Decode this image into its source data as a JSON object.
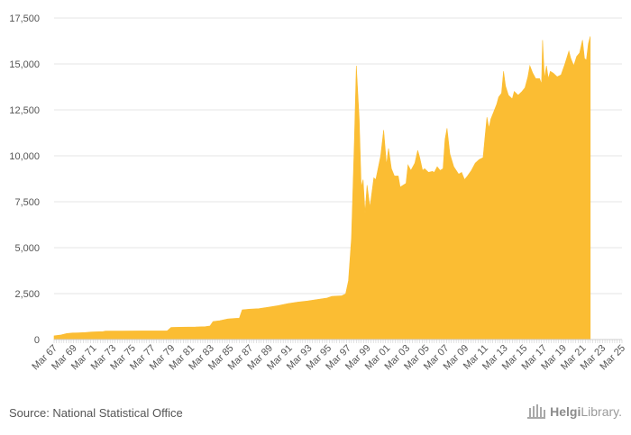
{
  "chart_data": {
    "type": "area",
    "title": "",
    "xlabel": "",
    "ylabel": "",
    "ylim": [
      0,
      17500
    ],
    "yticks": [
      0,
      2500,
      5000,
      7500,
      10000,
      12500,
      15000,
      17500
    ],
    "ytick_labels": [
      "0",
      "2,500",
      "5,000",
      "7,500",
      "10,000",
      "12,500",
      "15,000",
      "17,500"
    ],
    "xlim": [
      1967.0,
      2025.25
    ],
    "xtick_labels": [
      "Mar 67",
      "Mar 69",
      "Mar 71",
      "Mar 73",
      "Mar 75",
      "Mar 77",
      "Mar 79",
      "Mar 81",
      "Mar 83",
      "Mar 85",
      "Mar 87",
      "Mar 89",
      "Mar 91",
      "Mar 93",
      "Mar 95",
      "Mar 97",
      "Mar 99",
      "Mar 01",
      "Mar 03",
      "Mar 05",
      "Mar 07",
      "Mar 09",
      "Mar 11",
      "Mar 13",
      "Mar 15",
      "Mar 17",
      "Mar 19",
      "Mar 21",
      "Mar 23",
      "Mar 25"
    ],
    "grid": true,
    "series": [
      {
        "name": "Value",
        "color": "#fbbd33",
        "points": [
          [
            1967.0,
            200
          ],
          [
            1967.7,
            250
          ],
          [
            1968.3,
            330
          ],
          [
            1968.9,
            360
          ],
          [
            1969.5,
            370
          ],
          [
            1970.2,
            380
          ],
          [
            1970.9,
            410
          ],
          [
            1972.0,
            430
          ],
          [
            1972.3,
            460
          ],
          [
            1974.0,
            465
          ],
          [
            1976.0,
            470
          ],
          [
            1977.5,
            470
          ],
          [
            1978.6,
            470
          ],
          [
            1979.0,
            660
          ],
          [
            1980.0,
            670
          ],
          [
            1981.5,
            680
          ],
          [
            1982.5,
            700
          ],
          [
            1983.0,
            740
          ],
          [
            1983.3,
            980
          ],
          [
            1984.0,
            1030
          ],
          [
            1984.8,
            1120
          ],
          [
            1985.5,
            1150
          ],
          [
            1986.0,
            1160
          ],
          [
            1986.3,
            1620
          ],
          [
            1987.0,
            1650
          ],
          [
            1988.0,
            1680
          ],
          [
            1989.0,
            1760
          ],
          [
            1990.0,
            1850
          ],
          [
            1991.0,
            1960
          ],
          [
            1992.0,
            2040
          ],
          [
            1993.0,
            2100
          ],
          [
            1994.0,
            2180
          ],
          [
            1995.0,
            2260
          ],
          [
            1995.5,
            2350
          ],
          [
            1996.5,
            2380
          ],
          [
            1996.9,
            2480
          ],
          [
            1997.2,
            3200
          ],
          [
            1997.5,
            5500
          ],
          [
            1997.8,
            10800
          ],
          [
            1998.0,
            14900
          ],
          [
            1998.3,
            12000
          ],
          [
            1998.5,
            8300
          ],
          [
            1998.7,
            8700
          ],
          [
            1998.9,
            6900
          ],
          [
            1999.1,
            8400
          ],
          [
            1999.4,
            7200
          ],
          [
            1999.8,
            8800
          ],
          [
            2000.0,
            8700
          ],
          [
            2000.5,
            10000
          ],
          [
            2000.8,
            11400
          ],
          [
            2001.1,
            9500
          ],
          [
            2001.3,
            10400
          ],
          [
            2001.6,
            9300
          ],
          [
            2001.9,
            8900
          ],
          [
            2002.3,
            8900
          ],
          [
            2002.5,
            8300
          ],
          [
            2002.8,
            8400
          ],
          [
            2003.1,
            8500
          ],
          [
            2003.3,
            9500
          ],
          [
            2003.6,
            9200
          ],
          [
            2004.0,
            9600
          ],
          [
            2004.3,
            10300
          ],
          [
            2004.5,
            9900
          ],
          [
            2004.8,
            9200
          ],
          [
            2005.0,
            9300
          ],
          [
            2005.4,
            9100
          ],
          [
            2005.8,
            9150
          ],
          [
            2006.0,
            9100
          ],
          [
            2006.3,
            9400
          ],
          [
            2006.6,
            9200
          ],
          [
            2006.9,
            9300
          ],
          [
            2007.1,
            10900
          ],
          [
            2007.3,
            11500
          ],
          [
            2007.6,
            10100
          ],
          [
            2008.0,
            9400
          ],
          [
            2008.5,
            9000
          ],
          [
            2008.8,
            9100
          ],
          [
            2009.1,
            8700
          ],
          [
            2009.4,
            8900
          ],
          [
            2009.8,
            9200
          ],
          [
            2010.2,
            9600
          ],
          [
            2010.6,
            9800
          ],
          [
            2011.0,
            9900
          ],
          [
            2011.2,
            11000
          ],
          [
            2011.4,
            12100
          ],
          [
            2011.6,
            11500
          ],
          [
            2011.8,
            12000
          ],
          [
            2012.1,
            12400
          ],
          [
            2012.4,
            12800
          ],
          [
            2012.6,
            13200
          ],
          [
            2012.9,
            13400
          ],
          [
            2013.1,
            14600
          ],
          [
            2013.3,
            13800
          ],
          [
            2013.6,
            13300
          ],
          [
            2014.0,
            13100
          ],
          [
            2014.2,
            13500
          ],
          [
            2014.6,
            13300
          ],
          [
            2015.0,
            13500
          ],
          [
            2015.3,
            13700
          ],
          [
            2015.6,
            14300
          ],
          [
            2015.8,
            14900
          ],
          [
            2016.1,
            14500
          ],
          [
            2016.4,
            14200
          ],
          [
            2016.8,
            14200
          ],
          [
            2017.0,
            13900
          ],
          [
            2017.1,
            16300
          ],
          [
            2017.3,
            14200
          ],
          [
            2017.5,
            14900
          ],
          [
            2017.7,
            14200
          ],
          [
            2017.9,
            14600
          ],
          [
            2018.2,
            14500
          ],
          [
            2018.6,
            14300
          ],
          [
            2019.0,
            14400
          ],
          [
            2019.4,
            15000
          ],
          [
            2019.8,
            15700
          ],
          [
            2020.0,
            15300
          ],
          [
            2020.3,
            14900
          ],
          [
            2020.6,
            15400
          ],
          [
            2020.9,
            15600
          ],
          [
            2021.2,
            16300
          ],
          [
            2021.4,
            15300
          ],
          [
            2021.6,
            15200
          ],
          [
            2021.8,
            16100
          ],
          [
            2022.0,
            16500
          ]
        ]
      }
    ]
  },
  "footer": {
    "source": "Source: National Statistical Office",
    "logo_text_bold": "Helgi",
    "logo_text_rest": "Library."
  }
}
